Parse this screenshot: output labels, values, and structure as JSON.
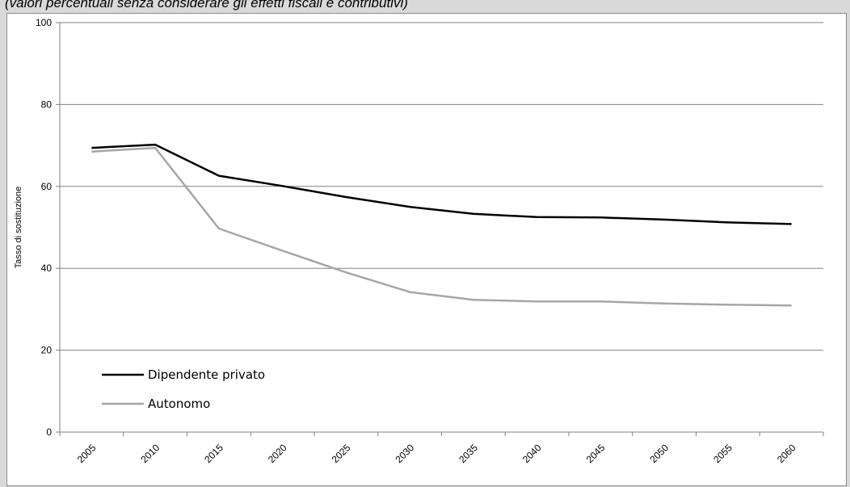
{
  "subtitle": "(valori percentuali senza considerare gli effetti fiscali e contributivi)",
  "chart_data": {
    "type": "line",
    "title": "",
    "ylabel": "Tasso di sostituzione",
    "xlabel": "",
    "ylim": [
      0,
      100
    ],
    "yticks": [
      0,
      20,
      40,
      60,
      80,
      100
    ],
    "grid": true,
    "legend_position": "bottom-left",
    "categories": [
      "2005",
      "2010",
      "2015",
      "2020",
      "2025",
      "2030",
      "2035",
      "2040",
      "2045",
      "2050",
      "2055",
      "2060"
    ],
    "series": [
      {
        "name": "Dipendente privato",
        "color": "#000000",
        "values": [
          69.4,
          70.2,
          62.6,
          60.1,
          57.4,
          55.0,
          53.3,
          52.5,
          52.4,
          51.9,
          51.2,
          50.8
        ]
      },
      {
        "name": "Autonomo",
        "color": "#a6a6a6",
        "values": [
          68.5,
          69.4,
          49.7,
          44.3,
          39.0,
          34.2,
          32.3,
          31.9,
          31.9,
          31.4,
          31.1,
          30.9
        ]
      }
    ]
  }
}
